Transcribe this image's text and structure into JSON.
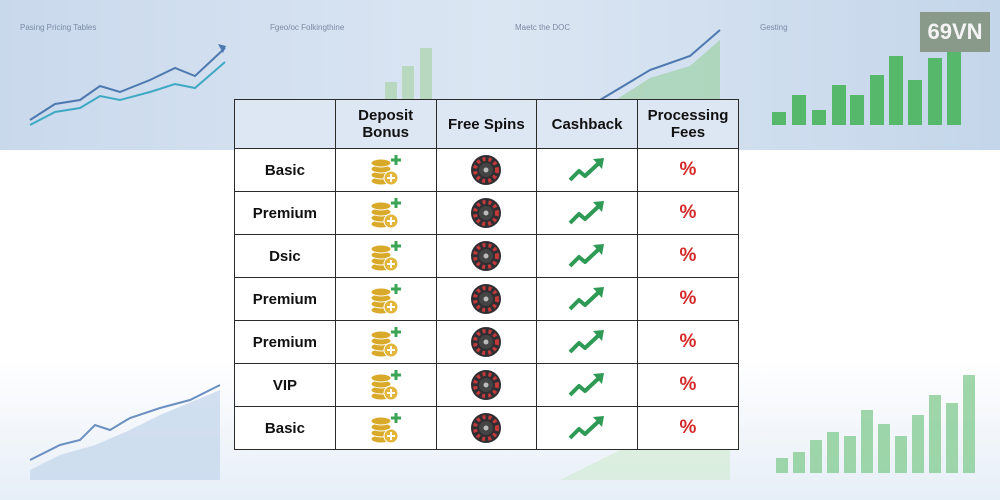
{
  "logo": "69VN",
  "background": {
    "labels": [
      "Pasing Pricing Tables",
      "Fgeo/oc Folkingthine",
      "Maetc the DOC",
      "Gesting"
    ]
  },
  "table": {
    "header": [
      "Deposit Bonus",
      "Free Spins",
      "Cashback",
      "Processing Fees"
    ],
    "rows": [
      {
        "label": "Basic",
        "fees": "%"
      },
      {
        "label": "Premium",
        "fees": "%"
      },
      {
        "label": "Dsic",
        "fees": "%"
      },
      {
        "label": "Premium",
        "fees": "%"
      },
      {
        "label": "Premium",
        "fees": "%"
      },
      {
        "label": "VIP",
        "fees": "%"
      },
      {
        "label": "Basic",
        "fees": "%"
      }
    ]
  }
}
